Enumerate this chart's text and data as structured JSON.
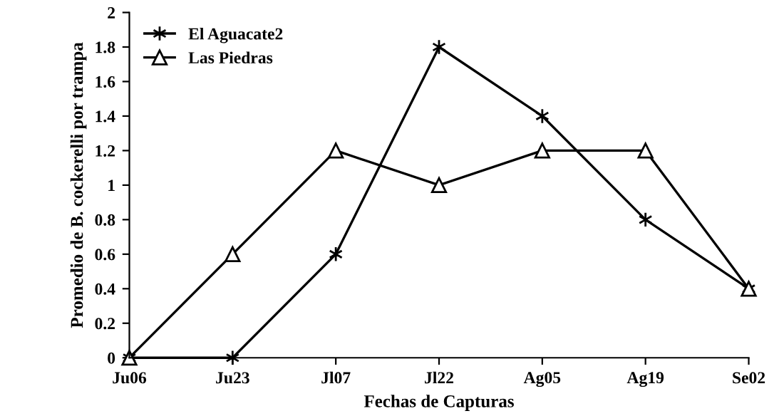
{
  "chart_data": {
    "type": "line",
    "xlabel": "Fechas de Capturas",
    "ylabel": "Promedio de B. cockerelli por trampa",
    "categories": [
      "Ju06",
      "Ju23",
      "Jl07",
      "Jl22",
      "Ag05",
      "Ag19",
      "Se02"
    ],
    "series": [
      {
        "name": "El Aguacate2",
        "color": "#000000",
        "marker": "cross",
        "values": [
          0,
          0,
          0.6,
          1.8,
          1.4,
          0.8,
          0.4
        ]
      },
      {
        "name": "Las Piedras",
        "color": "#000000",
        "marker": "triangle",
        "values": [
          0,
          0.6,
          1.2,
          1.0,
          1.2,
          1.2,
          0.4
        ]
      }
    ],
    "ylim": [
      0,
      2
    ],
    "yticks": [
      0,
      {
        "value": 0.2,
        "label": "0.2"
      },
      {
        "value": 0.4,
        "label": "0.4"
      },
      {
        "value": 0.6,
        "label": "0.6"
      },
      {
        "value": 0.8,
        "label": "0.8"
      },
      1,
      {
        "value": 1.2,
        "label": "1.2"
      },
      {
        "value": 1.4,
        "label": "1.4"
      },
      {
        "value": 1.6,
        "label": "1.6"
      },
      {
        "value": 1.8,
        "label": "1.8"
      },
      2
    ],
    "grid": false,
    "legend": "top left",
    "line_style": "solid"
  }
}
